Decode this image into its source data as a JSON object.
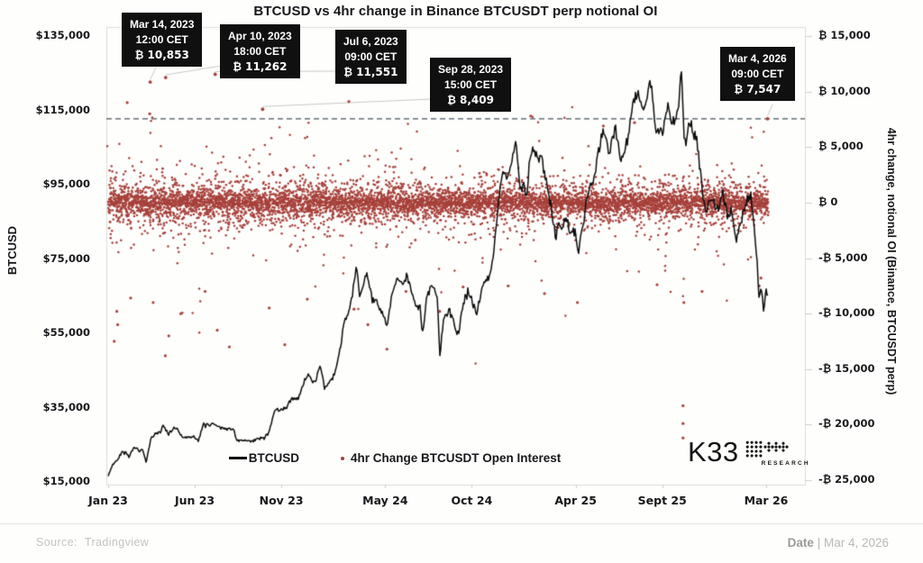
{
  "title": "BTCUSD vs 4hr change in Binance BTCUSDT perp notional OI",
  "left_axis": {
    "label": "BTCUSD",
    "tick_values": [
      135000,
      115000,
      95000,
      75000,
      55000,
      35000,
      15000
    ],
    "tick_labels": [
      "$135,000",
      "$115,000",
      "$95,000",
      "$75,000",
      "$55,000",
      "$35,000",
      "$15,000"
    ],
    "min": 15000,
    "max": 135000
  },
  "right_axis": {
    "label": "4hr change, notional OI (Binance, BTCUSDT perp)",
    "tick_values": [
      15000,
      10000,
      5000,
      0,
      -5000,
      -10000,
      -15000,
      -20000,
      -25000
    ],
    "tick_labels": [
      "₿ 15,000",
      "₿ 10,000",
      "₿ 5,000",
      "₿ 0",
      "-₿ 5,000",
      "-₿ 10,000",
      "-₿ 15,000",
      "-₿ 20,000",
      "-₿ 25,000"
    ],
    "min": -25000,
    "max": 15000
  },
  "x_axis": {
    "tick_months": [
      0,
      5,
      10,
      16,
      21,
      27,
      32,
      38
    ],
    "tick_labels": [
      "Jan 23",
      "Jun 23",
      "Nov 23",
      "May 24",
      "Oct 24",
      "Apr 25",
      "Sept 25",
      "Mar 26"
    ]
  },
  "legend": [
    {
      "label": "BTCUSD",
      "marker": "line",
      "color": "#0d0d0d"
    },
    {
      "label": "4hr Change BTCUSDT Open Interest",
      "marker": "dot",
      "color": "#a7403a"
    }
  ],
  "annotations": [
    {
      "date": "Mar 14, 2023",
      "time": "12:00 CET",
      "amount": "₿ 10,853",
      "month": 2.43,
      "value": 10853
    },
    {
      "date": "Apr 10, 2023",
      "time": "18:00 CET",
      "amount": "₿ 11,262",
      "month": 3.32,
      "value": 11262
    },
    {
      "date": "Jul 6, 2023",
      "time": "09:00 CET",
      "amount": "₿ 11,551",
      "month": 6.18,
      "value": 11551
    },
    {
      "date": "Sep 28, 2023",
      "time": "15:00 CET",
      "amount": "₿ 8,409",
      "month": 8.92,
      "value": 8409
    },
    {
      "date": "Mar 4, 2026",
      "time": "09:00 CET",
      "amount": "₿ 7,547",
      "month": 38.08,
      "value": 7547
    }
  ],
  "reference_line": {
    "value": 7547,
    "style": "dashed",
    "color": "#47525a"
  },
  "logo": {
    "text": "K33",
    "sub": "RESEARCH"
  },
  "footer": {
    "source_label": "Source:",
    "source": "Tradingview",
    "date_label": "Date",
    "date_sep": " | ",
    "date": "Mar 4, 2026"
  },
  "colors": {
    "scatter": "#a7403a",
    "line": "#0d0d0d",
    "border": "#dcdcda",
    "leader": "#c8c8c5",
    "annotation_bg": "#101010"
  },
  "chart_data": {
    "type": "line+scatter",
    "title": "BTCUSD vs 4hr change in Binance BTCUSDT perp notional OI",
    "x_unit": "months since Jan 2023",
    "xlim_months": [
      0,
      38.5
    ],
    "left_ylim": [
      15000,
      135000
    ],
    "right_ylim": [
      -25000,
      15000
    ],
    "grid": false,
    "legend_position": "bottom-center",
    "series": [
      {
        "name": "BTCUSD",
        "type": "line",
        "axis": "left",
        "color": "#0d0d0d",
        "x_months": [
          0,
          0.25,
          0.5,
          0.8,
          1.0,
          1.2,
          1.5,
          1.8,
          2.0,
          2.2,
          2.45,
          2.7,
          3.0,
          3.2,
          3.5,
          3.8,
          4.0,
          4.2,
          4.5,
          4.8,
          5.0,
          5.2,
          5.5,
          5.8,
          6.0,
          6.3,
          6.6,
          7.0,
          7.2,
          7.45,
          7.8,
          8.0,
          8.3,
          8.6,
          9.0,
          9.3,
          9.6,
          10.0,
          10.3,
          10.6,
          11.0,
          11.3,
          11.6,
          11.8,
          12.0,
          12.25,
          12.5,
          12.8,
          13.0,
          13.3,
          13.6,
          13.9,
          14.0,
          14.35,
          14.55,
          14.8,
          15.0,
          15.25,
          15.5,
          15.8,
          16.0,
          16.1,
          16.4,
          16.7,
          17.0,
          17.3,
          17.6,
          17.9,
          18.0,
          18.15,
          18.4,
          18.7,
          19.0,
          19.15,
          19.4,
          19.7,
          20.0,
          20.2,
          20.5,
          20.8,
          21.0,
          21.3,
          21.6,
          21.9,
          22.0,
          22.25,
          22.5,
          22.75,
          23.0,
          23.25,
          23.55,
          23.8,
          24.0,
          24.15,
          24.35,
          24.6,
          24.85,
          25.0,
          25.3,
          25.6,
          25.85,
          26.0,
          26.2,
          26.45,
          26.7,
          27.0,
          27.15,
          27.45,
          27.75,
          28.0,
          28.3,
          28.6,
          28.9,
          29.0,
          29.3,
          29.65,
          30.0,
          30.3,
          30.55,
          30.8,
          31.0,
          31.3,
          31.65,
          32.0,
          32.3,
          32.6,
          32.9,
          33.1,
          33.3,
          33.55,
          33.8,
          34.0,
          34.25,
          34.5,
          34.75,
          35.0,
          35.25,
          35.5,
          35.75,
          36.0,
          36.3,
          36.6,
          36.9,
          37.1,
          37.3,
          37.45,
          37.6,
          37.7,
          37.85,
          38.0,
          38.1
        ],
        "values_usd": [
          16600,
          19500,
          20900,
          23000,
          23100,
          21700,
          24600,
          23300,
          23500,
          20100,
          26500,
          28000,
          28300,
          30200,
          27800,
          29600,
          29300,
          27600,
          26800,
          27100,
          27200,
          25700,
          30600,
          30300,
          30600,
          30300,
          29300,
          29200,
          29500,
          26000,
          26100,
          25900,
          25800,
          26500,
          27000,
          28300,
          34200,
          34600,
          35100,
          37400,
          37700,
          41900,
          43800,
          42200,
          42600,
          46400,
          39900,
          42000,
          42600,
          48000,
          57000,
          61500,
          62400,
          73100,
          64500,
          69800,
          70800,
          64100,
          63500,
          60500,
          58300,
          56900,
          66200,
          69900,
          67600,
          71000,
          65000,
          61300,
          62800,
          54900,
          64500,
          68100,
          64600,
          49900,
          59200,
          61000,
          57300,
          53900,
          63000,
          65500,
          63300,
          60700,
          67300,
          69500,
          69900,
          75500,
          88000,
          98000,
          96400,
          101300,
          106100,
          93800,
          94400,
          91000,
          102500,
          104900,
          101500,
          102400,
          95900,
          88600,
          80300,
          84400,
          82900,
          86900,
          82000,
          82500,
          76300,
          84900,
          94100,
          94200,
          103800,
          109700,
          103900,
          104600,
          110200,
          101200,
          107200,
          117500,
          120000,
          115400,
          115800,
          124300,
          109200,
          108900,
          115800,
          111900,
          114100,
          125800,
          105100,
          111500,
          110000,
          107100,
          95800,
          87100,
          91600,
          90400,
          87300,
          93100,
          86500,
          88100,
          80000,
          86000,
          91000,
          92500,
          85000,
          76000,
          64000,
          68000,
          61500,
          66500,
          64800
        ]
      },
      {
        "name": "4hr Change BTCUSDT Open Interest",
        "type": "scatter",
        "axis": "right",
        "color": "#a7403a",
        "description": "4-hour changes in Binance BTCUSDT perp notional open interest, dense band centered on 0 with heavy tails",
        "generator": {
          "seed": 7,
          "count": 6900,
          "laplace_scale": 640,
          "mid_tail_scale": 1650,
          "mid_tail_prob": 0.085,
          "far_tail_scale": 3300,
          "far_tail_prob": 0.012,
          "clamp_min": -14500,
          "clamp_max": 8600,
          "span_months": 38.12
        },
        "notable_points": [
          [
            0.35,
            -12500
          ],
          [
            0.5,
            -9800
          ],
          [
            0.55,
            -11000
          ],
          [
            1.1,
            9000
          ],
          [
            1.3,
            -8600
          ],
          [
            2.4,
            8000
          ],
          [
            2.6,
            -9000
          ],
          [
            3.3,
            -13800
          ],
          [
            3.5,
            -12000
          ],
          [
            4.2,
            -10000
          ],
          [
            5.6,
            -8000
          ],
          [
            6.3,
            -11500
          ],
          [
            7.0,
            -13000
          ],
          [
            9.3,
            -9500
          ],
          [
            10.2,
            -12800
          ],
          [
            11.5,
            -8700
          ],
          [
            13.9,
            9100
          ],
          [
            14.2,
            -9600
          ],
          [
            15.0,
            -11000
          ],
          [
            16.1,
            -13200
          ],
          [
            17.2,
            -8000
          ],
          [
            19.15,
            -9800
          ],
          [
            20.5,
            -7600
          ],
          [
            22.6,
            8300
          ],
          [
            23.1,
            -7500
          ],
          [
            24.4,
            7800
          ],
          [
            25.2,
            -8200
          ],
          [
            27.1,
            -9000
          ],
          [
            28.6,
            6900
          ],
          [
            30.4,
            7200
          ],
          [
            31.7,
            -7400
          ],
          [
            33.2,
            -18300
          ],
          [
            33.2,
            -19900
          ],
          [
            33.2,
            -21200
          ],
          [
            33.25,
            -9000
          ],
          [
            34.3,
            -8000
          ],
          [
            37.6,
            -7500
          ],
          [
            37.7,
            -6800
          ]
        ],
        "annotated_extremes": [
          [
            2.43,
            10853
          ],
          [
            3.32,
            11262
          ],
          [
            6.18,
            11551
          ],
          [
            8.92,
            8409
          ],
          [
            38.08,
            7547
          ]
        ]
      }
    ],
    "reference_line_right_axis_value": 7547
  }
}
